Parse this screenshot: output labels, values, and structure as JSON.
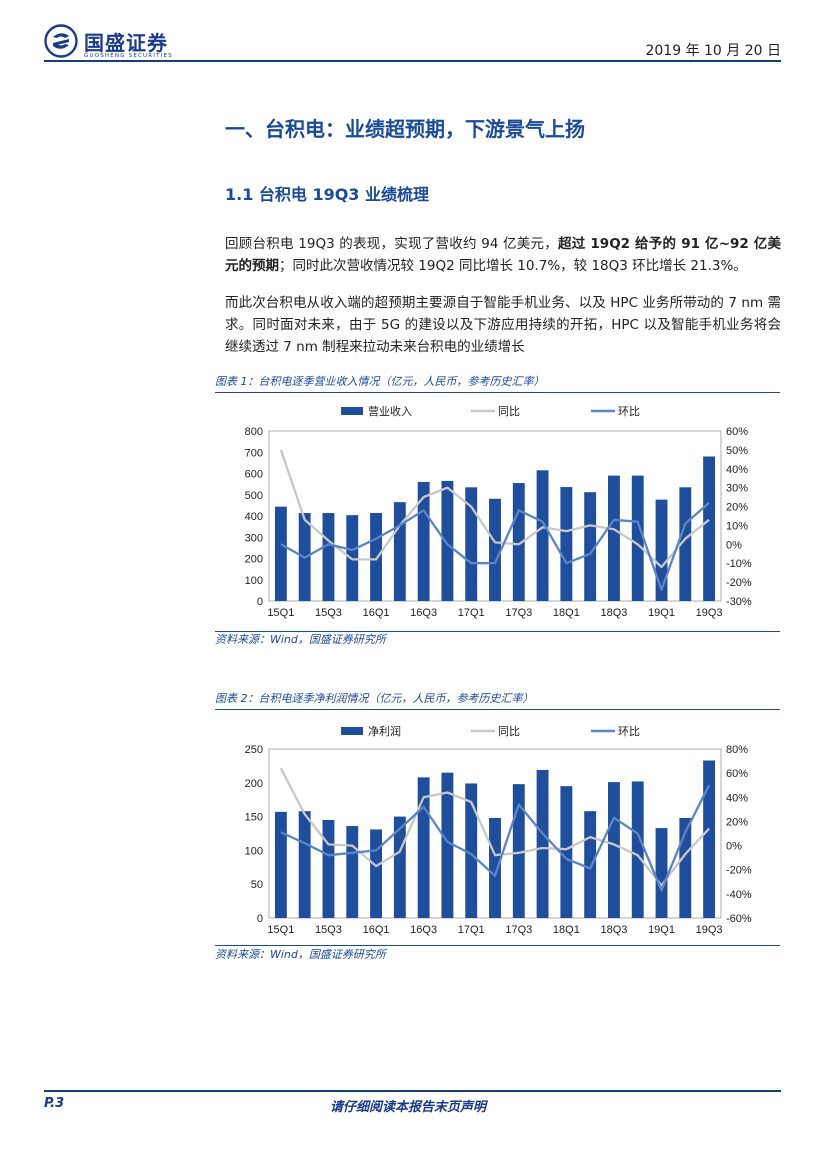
{
  "header": {
    "brand": "国盛证券",
    "brand_sub": "GUOSHENG SECURITIES",
    "date": "2019 年 10 月 20 日"
  },
  "section": {
    "h1": "一、台积电：业绩超预期，下游景气上扬",
    "h2": "1.1  台积电 19Q3 业绩梳理"
  },
  "paragraphs": {
    "p1_a": "回顾台积电 19Q3 的表现，实现了营收约 94 亿美元，",
    "p1_b": "超过 19Q2 给予的 91 亿~92 亿美元的预期",
    "p1_c": "；同时此次营收情况较 19Q2 同比增长 10.7%，较 18Q3 环比增长 21.3%。",
    "p2": "而此次台积电从收入端的超预期主要源自于智能手机业务、以及 HPC 业务所带动的 7 nm 需求。同时面对未来，由于 5G 的建设以及下游应用持续的开拓，HPC 以及智能手机业务将会继续透过 7 nm 制程来拉动未来台积电的业绩增长"
  },
  "figures": {
    "fig1_caption": "图表 1：台积电逐季营业收入情况（亿元，人民币，参考历史汇率）",
    "fig1_source": "资料来源：Wind，国盛证券研究所",
    "fig2_caption": "图表 2：台积电逐季净利润情况（亿元，人民币，参考历史汇率）",
    "fig2_source": "资料来源：Wind，国盛证券研究所"
  },
  "colors": {
    "bar": "#1f4e9c",
    "yoy": "#c8c8c8",
    "qoq": "#5b85c6",
    "brand": "#1a3a8a"
  },
  "chart_data": [
    {
      "type": "bar",
      "categories": [
        "15Q1",
        "15Q2",
        "15Q3",
        "15Q4",
        "16Q1",
        "16Q2",
        "16Q3",
        "16Q4",
        "17Q1",
        "17Q2",
        "17Q3",
        "17Q4",
        "18Q1",
        "18Q2",
        "18Q3",
        "18Q4",
        "19Q1",
        "19Q2",
        "19Q3"
      ],
      "tick_labels": [
        "15Q1",
        "15Q3",
        "16Q1",
        "16Q3",
        "17Q1",
        "17Q3",
        "18Q1",
        "18Q3",
        "19Q1",
        "19Q3"
      ],
      "series": [
        {
          "name": "营业收入",
          "type": "bar",
          "axis": "left",
          "values": [
            444,
            414,
            414,
            404,
            414,
            465,
            560,
            565,
            535,
            481,
            555,
            615,
            536,
            512,
            590,
            590,
            477,
            535,
            680
          ]
        },
        {
          "name": "同比",
          "type": "line",
          "axis": "right",
          "values": [
            50,
            13,
            2,
            -8,
            -8,
            10,
            25,
            30,
            20,
            1,
            0,
            9,
            7,
            10,
            8,
            0,
            -12,
            3,
            13
          ]
        },
        {
          "name": "环比",
          "type": "line",
          "axis": "right",
          "values": [
            0,
            -7,
            0,
            -3,
            3,
            10,
            18,
            0,
            -10,
            -10,
            18,
            12,
            -10,
            -5,
            13,
            12,
            -24,
            11,
            22
          ]
        }
      ],
      "left_ticks": [
        "0",
        "100",
        "200",
        "300",
        "400",
        "500",
        "600",
        "700",
        "800"
      ],
      "right_ticks": [
        "-30%",
        "-20%",
        "-10%",
        "0%",
        "10%",
        "20%",
        "30%",
        "40%",
        "50%",
        "60%"
      ],
      "ylim": [
        0,
        800
      ],
      "y2lim": [
        -30,
        60
      ]
    },
    {
      "type": "bar",
      "categories": [
        "15Q1",
        "15Q2",
        "15Q3",
        "15Q4",
        "16Q1",
        "16Q2",
        "16Q3",
        "16Q4",
        "17Q1",
        "17Q2",
        "17Q3",
        "17Q4",
        "18Q1",
        "18Q2",
        "18Q3",
        "18Q4",
        "19Q1",
        "19Q2",
        "19Q3"
      ],
      "tick_labels": [
        "15Q1",
        "15Q3",
        "16Q1",
        "16Q3",
        "17Q1",
        "17Q3",
        "18Q1",
        "18Q3",
        "19Q1",
        "19Q3"
      ],
      "series": [
        {
          "name": "净利润",
          "type": "bar",
          "axis": "left",
          "values": [
            157,
            158,
            145,
            136,
            131,
            150,
            208,
            215,
            199,
            148,
            198,
            219,
            195,
            158,
            201,
            202,
            133,
            148,
            233
          ]
        },
        {
          "name": "同比",
          "type": "line",
          "axis": "right",
          "values": [
            64,
            26,
            1,
            0,
            -17,
            -5,
            40,
            44,
            36,
            -8,
            -6,
            -2,
            -3,
            7,
            1,
            -8,
            -33,
            -7,
            14
          ]
        },
        {
          "name": "环比",
          "type": "line",
          "axis": "right",
          "values": [
            11,
            2,
            -8,
            -6,
            -4,
            14,
            32,
            3,
            -7,
            -25,
            34,
            10,
            -11,
            -19,
            23,
            10,
            -37,
            11,
            50
          ]
        }
      ],
      "left_ticks": [
        "0",
        "50",
        "100",
        "150",
        "200",
        "250"
      ],
      "right_ticks": [
        "-60%",
        "-40%",
        "-20%",
        "0%",
        "20%",
        "40%",
        "60%",
        "80%"
      ],
      "ylim": [
        0,
        250
      ],
      "y2lim": [
        -60,
        80
      ]
    }
  ],
  "footer": {
    "page": "P.3",
    "note": "请仔细阅读本报告末页声明"
  }
}
